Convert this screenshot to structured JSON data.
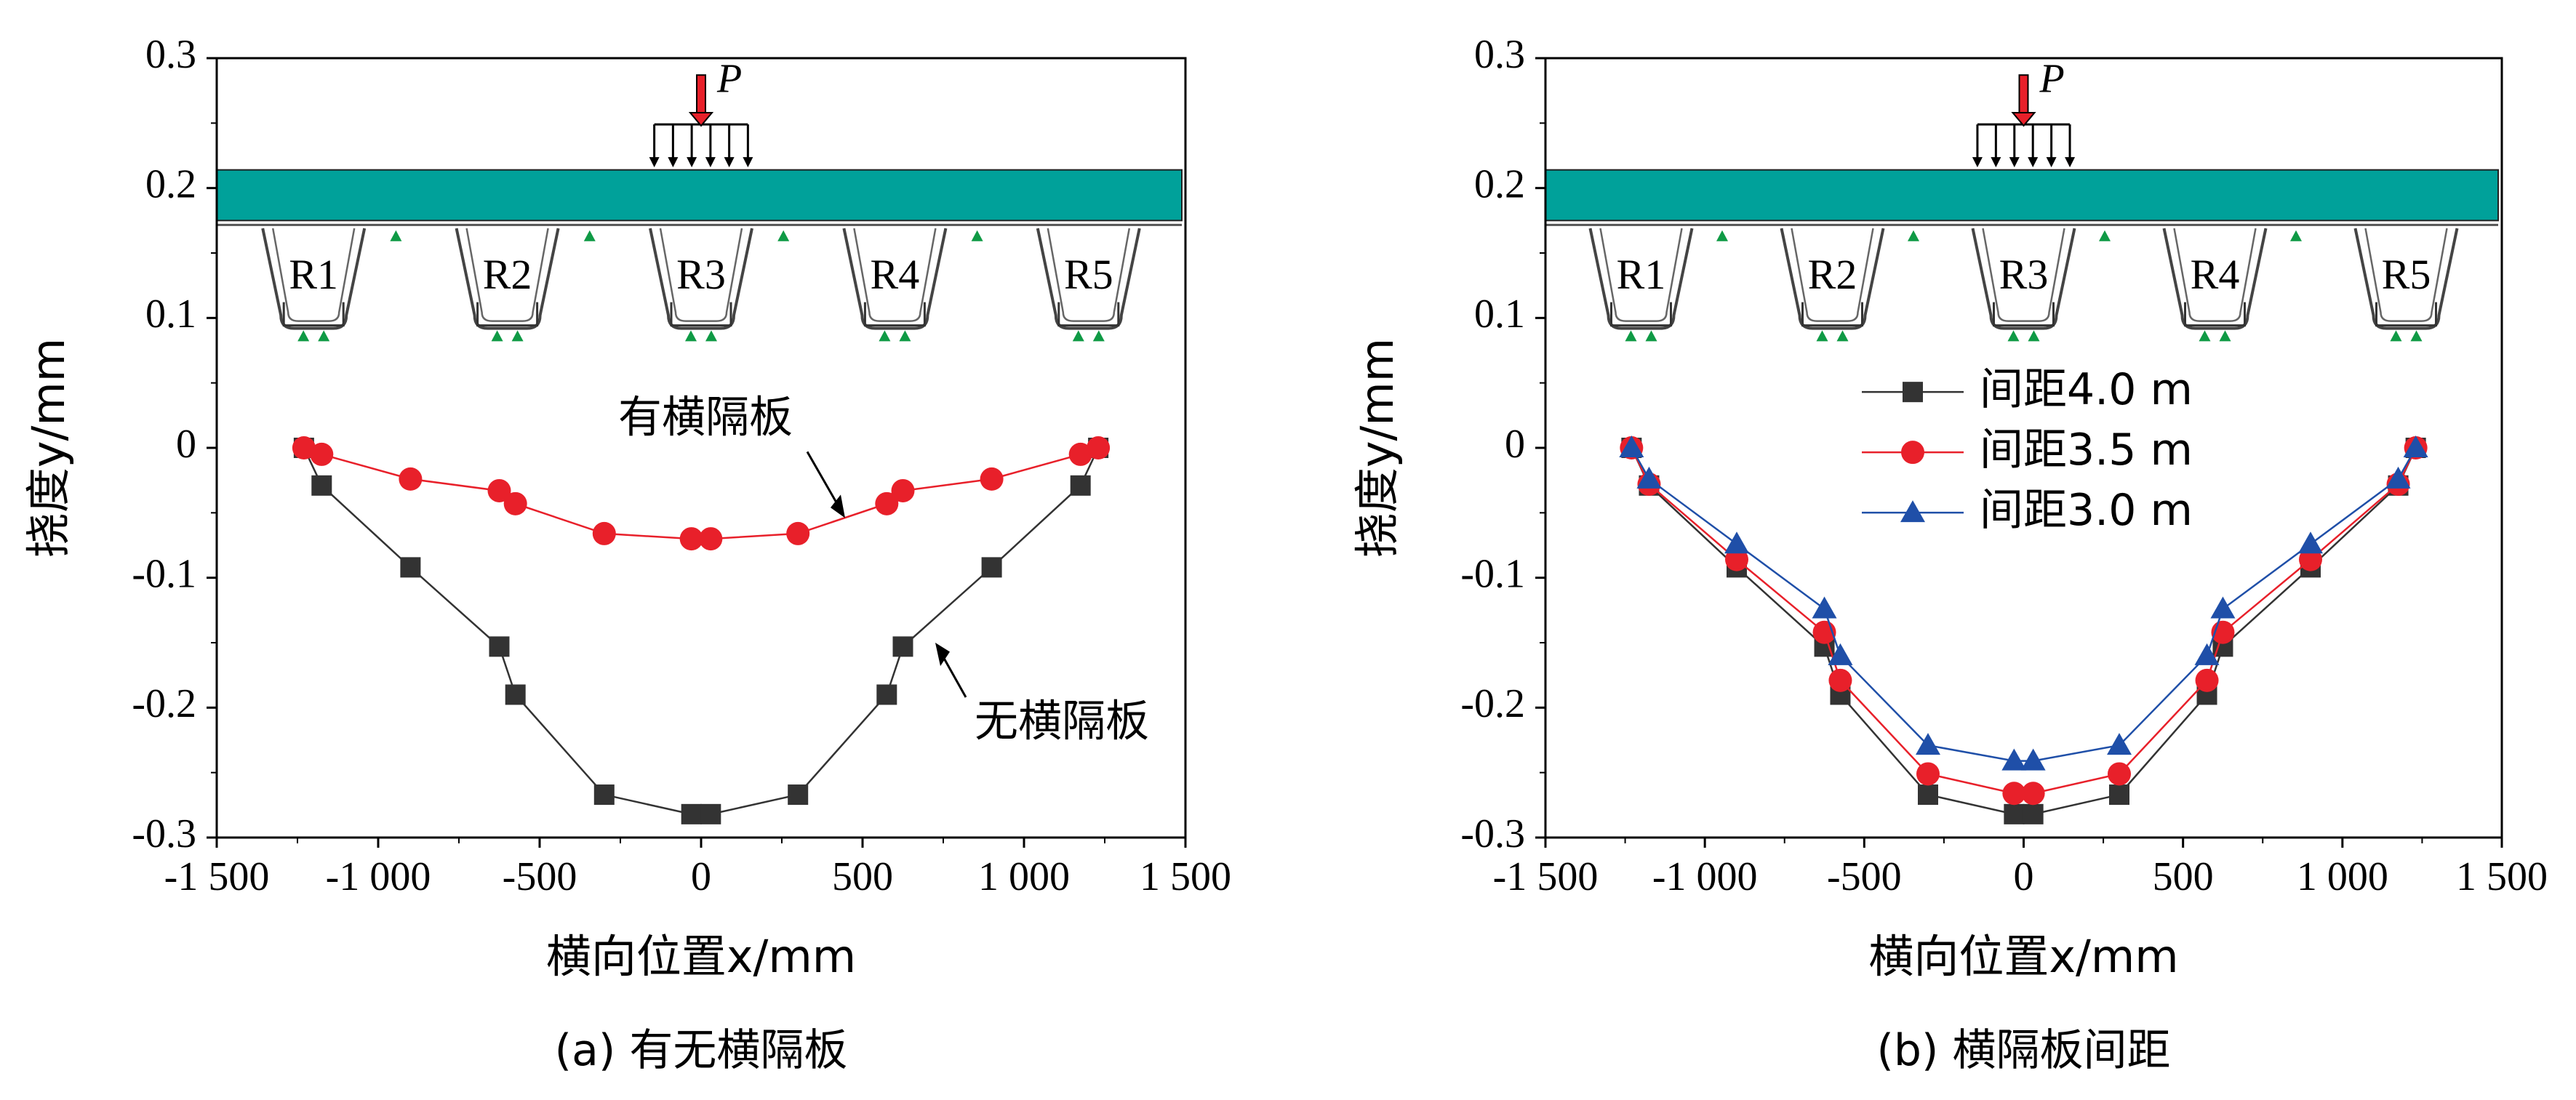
{
  "chart_data": [
    {
      "type": "line",
      "panel": "a",
      "caption": "(a) 有无横隔板",
      "xlabel": "横向位置x/mm",
      "ylabel": "挠度y/mm",
      "xlim": [
        -1500,
        1500
      ],
      "ylim": [
        -0.3,
        0.3
      ],
      "xticks": [
        "-1 500",
        "-1 000",
        "-500",
        "0",
        "500",
        "1 000",
        "1 500"
      ],
      "yticks": [
        "-0.3",
        "-0.2",
        "-0.1",
        "0",
        "0.1",
        "0.2",
        "0.3"
      ],
      "load_label": "P",
      "rib_labels": [
        "R1",
        "R2",
        "R3",
        "R4",
        "R5"
      ],
      "series": [
        {
          "name": "无横隔板",
          "color": "#333333",
          "marker": "square",
          "x": [
            -1230,
            -1175,
            -900,
            -625,
            -575,
            -300,
            -30,
            30,
            300,
            575,
            625,
            900,
            1175,
            1230
          ],
          "y": [
            0,
            -0.029,
            -0.092,
            -0.153,
            -0.19,
            -0.267,
            -0.282,
            -0.282,
            -0.267,
            -0.19,
            -0.153,
            -0.092,
            -0.029,
            0
          ]
        },
        {
          "name": "有横隔板",
          "color": "#e8202a",
          "marker": "circle",
          "x": [
            -1230,
            -1175,
            -900,
            -625,
            -575,
            -300,
            -30,
            30,
            300,
            575,
            625,
            900,
            1175,
            1230
          ],
          "y": [
            0,
            -0.005,
            -0.024,
            -0.033,
            -0.043,
            -0.066,
            -0.07,
            -0.07,
            -0.066,
            -0.043,
            -0.033,
            -0.024,
            -0.005,
            0
          ]
        }
      ]
    },
    {
      "type": "line",
      "panel": "b",
      "caption": "(b) 横隔板间距",
      "xlabel": "横向位置x/mm",
      "ylabel": "挠度y/mm",
      "xlim": [
        -1500,
        1500
      ],
      "ylim": [
        -0.3,
        0.3
      ],
      "xticks": [
        "-1 500",
        "-1 000",
        "-500",
        "0",
        "500",
        "1 000",
        "1 500"
      ],
      "yticks": [
        "-0.3",
        "-0.2",
        "-0.1",
        "0",
        "0.1",
        "0.2",
        "0.3"
      ],
      "load_label": "P",
      "rib_labels": [
        "R1",
        "R2",
        "R3",
        "R4",
        "R5"
      ],
      "legend_position": "center",
      "series": [
        {
          "name": "间距4.0 m",
          "color": "#333333",
          "marker": "square",
          "x": [
            -1230,
            -1175,
            -900,
            -625,
            -575,
            -300,
            -30,
            30,
            300,
            575,
            625,
            900,
            1175,
            1230
          ],
          "y": [
            0,
            -0.029,
            -0.092,
            -0.153,
            -0.19,
            -0.267,
            -0.282,
            -0.282,
            -0.267,
            -0.19,
            -0.153,
            -0.092,
            -0.029,
            0
          ]
        },
        {
          "name": "间距3.5 m",
          "color": "#e8202a",
          "marker": "circle",
          "x": [
            -1230,
            -1175,
            -900,
            -625,
            -575,
            -300,
            -30,
            30,
            300,
            575,
            625,
            900,
            1175,
            1230
          ],
          "y": [
            0,
            -0.028,
            -0.086,
            -0.142,
            -0.179,
            -0.251,
            -0.266,
            -0.266,
            -0.251,
            -0.179,
            -0.142,
            -0.086,
            -0.028,
            0
          ]
        },
        {
          "name": "间距3.0 m",
          "color": "#1f4fa8",
          "marker": "triangle",
          "x": [
            -1230,
            -1175,
            -900,
            -625,
            -575,
            -300,
            -30,
            30,
            300,
            575,
            625,
            900,
            1175,
            1230
          ],
          "y": [
            0,
            -0.024,
            -0.074,
            -0.124,
            -0.16,
            -0.229,
            -0.241,
            -0.241,
            -0.229,
            -0.16,
            -0.124,
            -0.074,
            -0.024,
            0
          ]
        }
      ]
    }
  ]
}
